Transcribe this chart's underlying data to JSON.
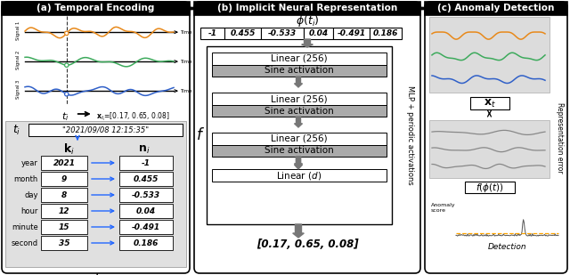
{
  "panel_a_title": "(a) Temporal Encoding",
  "panel_b_title": "(b) Implicit Neural Representation",
  "panel_c_title": "(c) Anomaly Detection",
  "encoding_values": [
    "-1",
    "0.455",
    "-0.533",
    "0.04",
    "-0.491",
    "0.186"
  ],
  "ki_values": [
    "2021",
    "9",
    "8",
    "12",
    "15",
    "35"
  ],
  "ni_values": [
    "-1",
    "0.455",
    "-0.533",
    "0.04",
    "-0.491",
    "0.186"
  ],
  "row_labels": [
    "year",
    "month",
    "day",
    "hour",
    "minute",
    "second"
  ],
  "timestamp": "\"2021/09/08 12:15:35\"",
  "signal_colors": [
    "#E8891A",
    "#3DAA5C",
    "#3060C8"
  ],
  "blue_arrow": "#2266FF",
  "dashed_orange": "#FFA500",
  "sine_gray": "#AAAAAA",
  "panel_bg_gray": "#E0E0E0",
  "arrow_dark": "#666666"
}
